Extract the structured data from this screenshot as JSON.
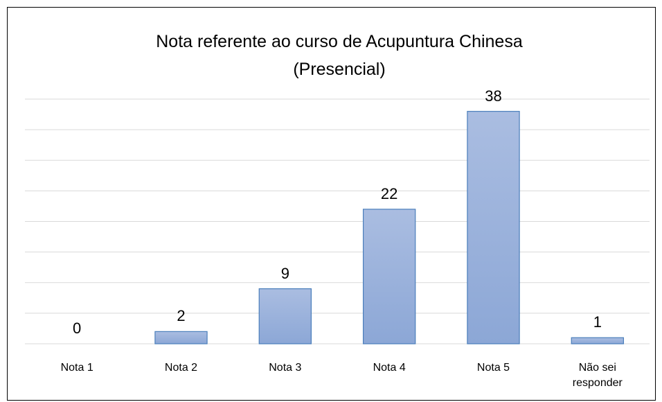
{
  "chart_data": {
    "type": "bar",
    "title": "Nota referente ao curso de Acupuntura Chinesa (Presencial)",
    "categories": [
      "Nota 1",
      "Nota 2",
      "Nota 3",
      "Nota 4",
      "Nota 5",
      "Não sei responder"
    ],
    "values": [
      0,
      2,
      9,
      22,
      38,
      1
    ],
    "color": "#9bb3dc",
    "ylim": [
      0,
      40
    ],
    "yticks": [
      0,
      5,
      10,
      15,
      20,
      25,
      30,
      35,
      40
    ],
    "grid": true
  }
}
